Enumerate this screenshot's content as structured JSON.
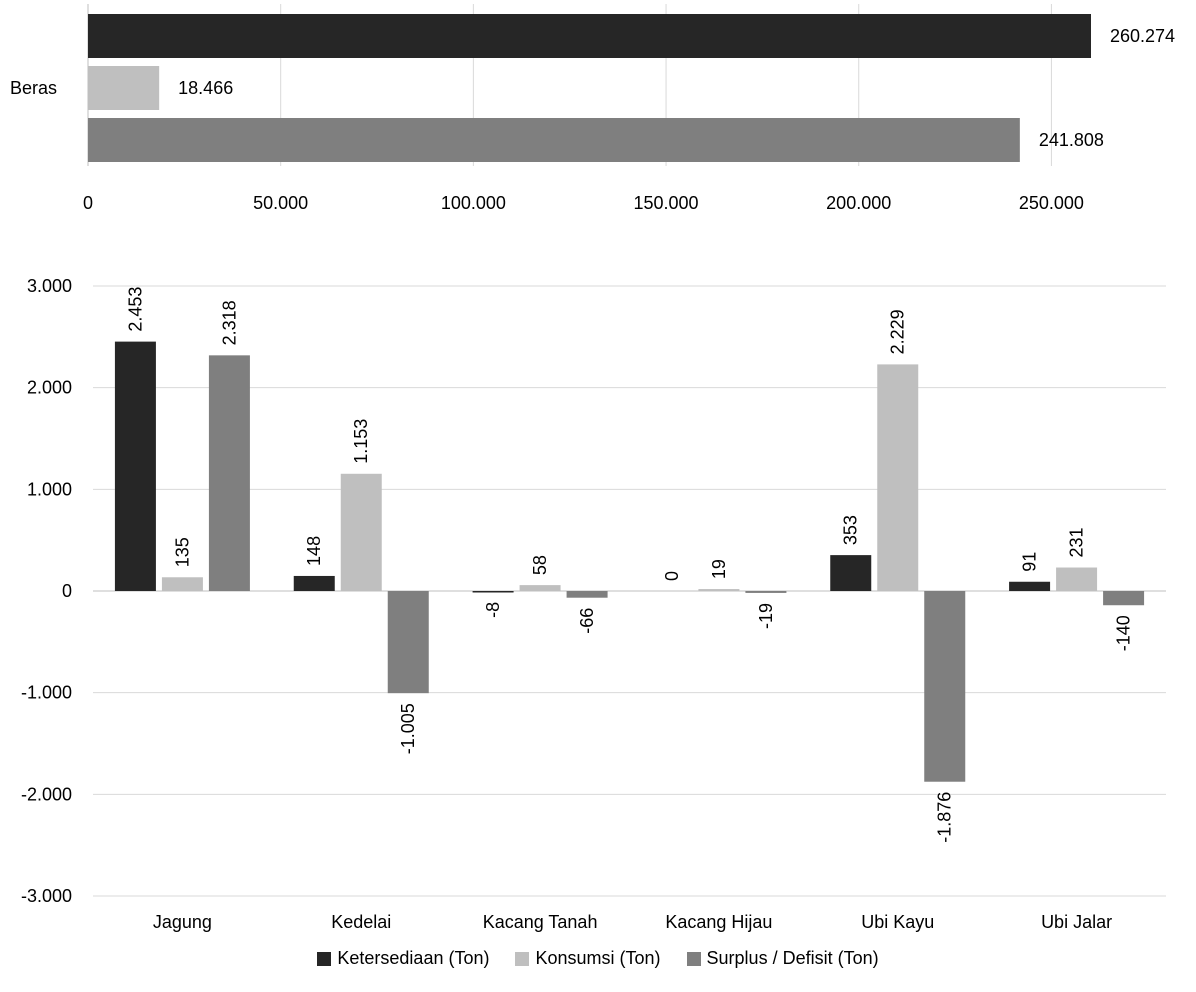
{
  "chart_data": [
    {
      "type": "bar",
      "orientation": "horizontal",
      "categories": [
        "Beras"
      ],
      "series": [
        {
          "name": "Ketersediaan (Ton)",
          "values": [
            260274
          ],
          "labels": [
            "260.274"
          ],
          "color": "#262626"
        },
        {
          "name": "Konsumsi (Ton)",
          "values": [
            18466
          ],
          "labels": [
            "18.466"
          ],
          "color": "#bfbfbf"
        },
        {
          "name": "Surplus / Defisit (Ton)",
          "values": [
            241808
          ],
          "labels": [
            "241.808"
          ],
          "color": "#7f7f7f"
        }
      ],
      "xlim": [
        0,
        260274
      ],
      "xticks": [
        "0",
        "50.000",
        "100.000",
        "150.000",
        "200.000",
        "250.000"
      ],
      "xtick_values": [
        0,
        50000,
        100000,
        150000,
        200000,
        250000
      ],
      "grid": true,
      "legend": "none"
    },
    {
      "type": "bar",
      "orientation": "vertical",
      "categories": [
        "Jagung",
        "Kedelai",
        "Kacang Tanah",
        "Kacang Hijau",
        "Ubi Kayu",
        "Ubi Jalar"
      ],
      "series": [
        {
          "name": "Ketersediaan (Ton)",
          "values": [
            2453,
            148,
            -8,
            0,
            353,
            91
          ],
          "labels": [
            "2.453",
            "148",
            "-8",
            "0",
            "353",
            "91"
          ],
          "color": "#262626"
        },
        {
          "name": "Konsumsi (Ton)",
          "values": [
            135,
            1153,
            58,
            19,
            2229,
            231
          ],
          "labels": [
            "135",
            "1.153",
            "58",
            "19",
            "2.229",
            "231"
          ],
          "color": "#bfbfbf"
        },
        {
          "name": "Surplus / Defisit (Ton)",
          "values": [
            2318,
            -1005,
            -66,
            -19,
            -1876,
            -140
          ],
          "labels": [
            "2.318",
            "-1.005",
            "-66",
            "-19",
            "-1.876",
            "-140"
          ],
          "color": "#7f7f7f"
        }
      ],
      "ylim": [
        -3000,
        3000
      ],
      "yticks": [
        "3.000",
        "2.000",
        "1.000",
        "0",
        "-1.000",
        "-2.000",
        "-3.000"
      ],
      "ytick_values": [
        3000,
        2000,
        1000,
        0,
        -1000,
        -2000,
        -3000
      ],
      "grid": true,
      "legend": "bottom"
    }
  ],
  "legend": [
    {
      "label": "Ketersediaan (Ton)",
      "color": "#262626"
    },
    {
      "label": "Konsumsi (Ton)",
      "color": "#bfbfbf"
    },
    {
      "label": "Surplus / Defisit (Ton)",
      "color": "#7f7f7f"
    }
  ]
}
